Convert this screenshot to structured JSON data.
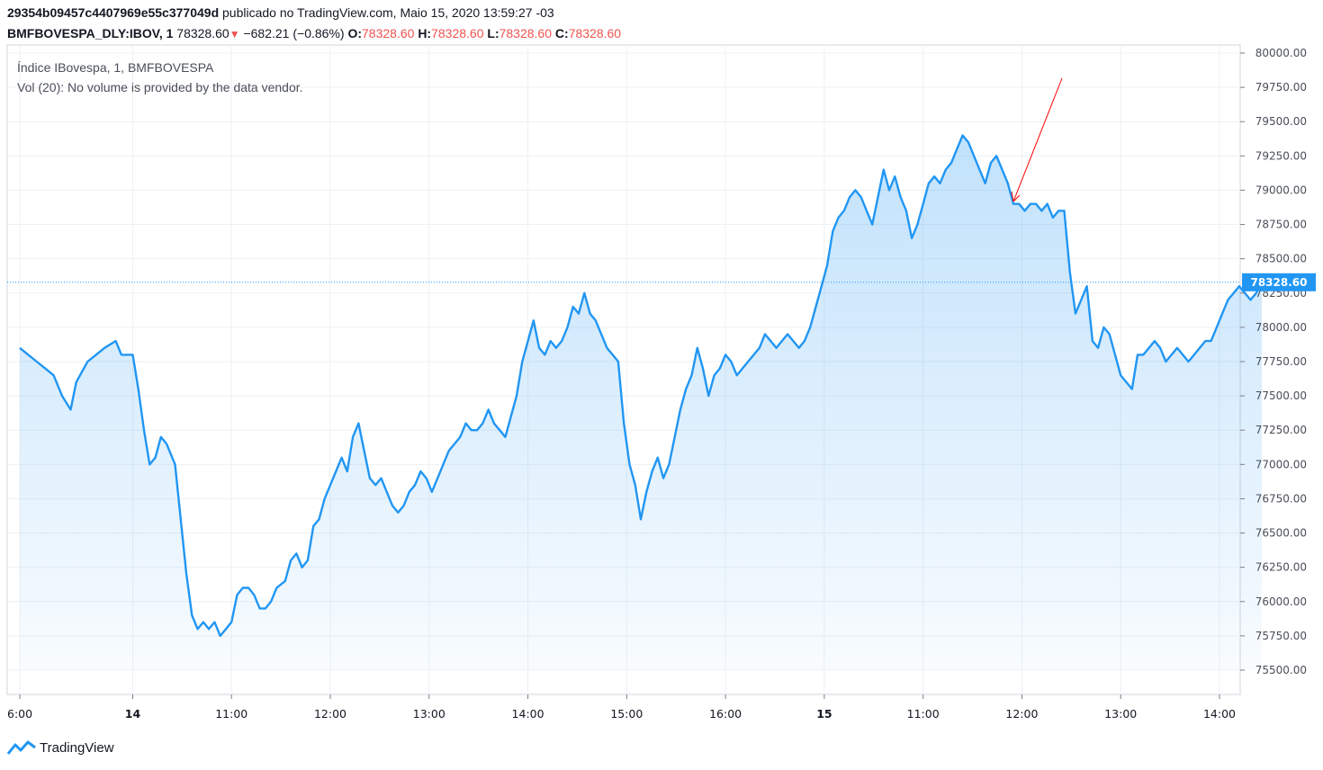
{
  "header": {
    "chart_id": "29354b09457c4407969e55c377049d",
    "published_text": "publicado no TradingView.com, Maio 15, 2020 13:59:27 -03",
    "symbol": "BMFBOVESPA_DLY:IBOV, 1",
    "last": "78328.60",
    "change": "−682.21 (−0.86%)",
    "open_label": "O:",
    "open": "78328.60",
    "high_label": "H:",
    "high": "78328.60",
    "low_label": "L:",
    "low": "78328.60",
    "close_label": "C:",
    "close": "78328.60"
  },
  "legend": {
    "title": "Índice IBovespa, 1, BMFBOVESPA",
    "volume_note": "Vol (20): No volume is provided by the data vendor."
  },
  "price_label": "78328.60",
  "colors": {
    "line": "#2196f3",
    "fill": "#2196f3",
    "down": "#ef5350",
    "annotation": "#ff0000",
    "price_label_bg": "#2196f3"
  },
  "logo_text": "TradingView",
  "chart_data": {
    "type": "area",
    "ylim": [
      75400,
      80050
    ],
    "y_ticks": [
      "80000.00",
      "79750.00",
      "79500.00",
      "79250.00",
      "79000.00",
      "78750.00",
      "78500.00",
      "78250.00",
      "78000.00",
      "77750.00",
      "77500.00",
      "77250.00",
      "77000.00",
      "76750.00",
      "76500.00",
      "76250.00",
      "76000.00",
      "75750.00",
      "75500.00"
    ],
    "x_ticks": [
      {
        "label": "6:00",
        "bold": false
      },
      {
        "label": "14",
        "bold": true
      },
      {
        "label": "11:00",
        "bold": false
      },
      {
        "label": "12:00",
        "bold": false
      },
      {
        "label": "13:00",
        "bold": false
      },
      {
        "label": "14:00",
        "bold": false
      },
      {
        "label": "15:00",
        "bold": false
      },
      {
        "label": "16:00",
        "bold": false
      },
      {
        "label": "15",
        "bold": true
      },
      {
        "label": "11:00",
        "bold": false
      },
      {
        "label": "12:00",
        "bold": false
      },
      {
        "label": "13:00",
        "bold": false
      },
      {
        "label": "14:00",
        "bold": false
      }
    ],
    "x_axis": "bar index (1-minute bars, 0-440)",
    "tick_bars": [
      0,
      40,
      75,
      110,
      145,
      180,
      215,
      250,
      285,
      320,
      355,
      390,
      425
    ],
    "series": [
      {
        "values": [
          [
            0,
            77850
          ],
          [
            3,
            77800
          ],
          [
            6,
            77750
          ],
          [
            9,
            77700
          ],
          [
            12,
            77650
          ],
          [
            15,
            77500
          ],
          [
            18,
            77400
          ],
          [
            20,
            77600
          ],
          [
            24,
            77750
          ],
          [
            27,
            77800
          ],
          [
            30,
            77850
          ],
          [
            34,
            77900
          ],
          [
            36,
            77800
          ],
          [
            40,
            77800
          ],
          [
            42,
            77550
          ],
          [
            44,
            77250
          ],
          [
            46,
            77000
          ],
          [
            48,
            77050
          ],
          [
            50,
            77200
          ],
          [
            52,
            77150
          ],
          [
            55,
            77000
          ],
          [
            57,
            76600
          ],
          [
            59,
            76200
          ],
          [
            61,
            75900
          ],
          [
            63,
            75800
          ],
          [
            65,
            75850
          ],
          [
            67,
            75800
          ],
          [
            69,
            75850
          ],
          [
            71,
            75750
          ],
          [
            73,
            75800
          ],
          [
            75,
            75850
          ],
          [
            77,
            76050
          ],
          [
            79,
            76100
          ],
          [
            81,
            76100
          ],
          [
            83,
            76050
          ],
          [
            85,
            75950
          ],
          [
            87,
            75950
          ],
          [
            89,
            76000
          ],
          [
            91,
            76100
          ],
          [
            94,
            76150
          ],
          [
            96,
            76300
          ],
          [
            98,
            76350
          ],
          [
            100,
            76250
          ],
          [
            102,
            76300
          ],
          [
            104,
            76550
          ],
          [
            106,
            76600
          ],
          [
            108,
            76750
          ],
          [
            110,
            76850
          ],
          [
            112,
            76950
          ],
          [
            114,
            77050
          ],
          [
            116,
            76950
          ],
          [
            118,
            77200
          ],
          [
            120,
            77300
          ],
          [
            122,
            77100
          ],
          [
            124,
            76900
          ],
          [
            126,
            76850
          ],
          [
            128,
            76900
          ],
          [
            130,
            76800
          ],
          [
            132,
            76700
          ],
          [
            134,
            76650
          ],
          [
            136,
            76700
          ],
          [
            138,
            76800
          ],
          [
            140,
            76850
          ],
          [
            142,
            76950
          ],
          [
            144,
            76900
          ],
          [
            146,
            76800
          ],
          [
            148,
            76900
          ],
          [
            150,
            77000
          ],
          [
            152,
            77100
          ],
          [
            154,
            77150
          ],
          [
            156,
            77200
          ],
          [
            158,
            77300
          ],
          [
            160,
            77250
          ],
          [
            162,
            77250
          ],
          [
            164,
            77300
          ],
          [
            166,
            77400
          ],
          [
            168,
            77300
          ],
          [
            170,
            77250
          ],
          [
            172,
            77200
          ],
          [
            174,
            77350
          ],
          [
            176,
            77500
          ],
          [
            178,
            77750
          ],
          [
            180,
            77900
          ],
          [
            182,
            78050
          ],
          [
            184,
            77850
          ],
          [
            186,
            77800
          ],
          [
            188,
            77900
          ],
          [
            190,
            77850
          ],
          [
            192,
            77900
          ],
          [
            194,
            78000
          ],
          [
            196,
            78150
          ],
          [
            198,
            78100
          ],
          [
            200,
            78250
          ],
          [
            202,
            78100
          ],
          [
            204,
            78050
          ],
          [
            206,
            77950
          ],
          [
            208,
            77850
          ],
          [
            210,
            77800
          ],
          [
            212,
            77750
          ],
          [
            214,
            77300
          ],
          [
            216,
            77000
          ],
          [
            218,
            76850
          ],
          [
            220,
            76600
          ],
          [
            222,
            76800
          ],
          [
            224,
            76950
          ],
          [
            226,
            77050
          ],
          [
            228,
            76900
          ],
          [
            230,
            77000
          ],
          [
            232,
            77200
          ],
          [
            234,
            77400
          ],
          [
            236,
            77550
          ],
          [
            238,
            77650
          ],
          [
            240,
            77850
          ],
          [
            242,
            77700
          ],
          [
            244,
            77500
          ],
          [
            246,
            77650
          ],
          [
            248,
            77700
          ],
          [
            250,
            77800
          ],
          [
            252,
            77750
          ],
          [
            254,
            77650
          ],
          [
            256,
            77700
          ],
          [
            258,
            77750
          ],
          [
            260,
            77800
          ],
          [
            262,
            77850
          ],
          [
            264,
            77950
          ],
          [
            266,
            77900
          ],
          [
            268,
            77850
          ],
          [
            270,
            77900
          ],
          [
            272,
            77950
          ],
          [
            274,
            77900
          ],
          [
            276,
            77850
          ],
          [
            278,
            77900
          ],
          [
            280,
            78000
          ],
          [
            282,
            78150
          ],
          [
            284,
            78300
          ],
          [
            286,
            78450
          ],
          [
            288,
            78700
          ],
          [
            290,
            78800
          ],
          [
            292,
            78850
          ],
          [
            294,
            78950
          ],
          [
            296,
            79000
          ],
          [
            298,
            78950
          ],
          [
            300,
            78850
          ],
          [
            302,
            78750
          ],
          [
            304,
            78950
          ],
          [
            306,
            79150
          ],
          [
            308,
            79000
          ],
          [
            310,
            79100
          ],
          [
            312,
            78950
          ],
          [
            314,
            78850
          ],
          [
            316,
            78650
          ],
          [
            318,
            78750
          ],
          [
            320,
            78900
          ],
          [
            322,
            79050
          ],
          [
            324,
            79100
          ],
          [
            326,
            79050
          ],
          [
            328,
            79150
          ],
          [
            330,
            79200
          ],
          [
            332,
            79300
          ],
          [
            334,
            79400
          ],
          [
            336,
            79350
          ],
          [
            338,
            79250
          ],
          [
            340,
            79150
          ],
          [
            342,
            79050
          ],
          [
            344,
            79200
          ],
          [
            346,
            79250
          ],
          [
            348,
            79150
          ],
          [
            350,
            79050
          ],
          [
            352,
            78900
          ],
          [
            354,
            78900
          ],
          [
            356,
            78850
          ],
          [
            358,
            78900
          ],
          [
            360,
            78900
          ],
          [
            362,
            78850
          ],
          [
            364,
            78900
          ],
          [
            366,
            78800
          ],
          [
            368,
            78850
          ],
          [
            370,
            78850
          ],
          [
            372,
            78400
          ],
          [
            374,
            78100
          ],
          [
            376,
            78200
          ],
          [
            378,
            78300
          ],
          [
            380,
            77900
          ],
          [
            382,
            77850
          ],
          [
            384,
            78000
          ],
          [
            386,
            77950
          ],
          [
            388,
            77800
          ],
          [
            390,
            77650
          ],
          [
            392,
            77600
          ],
          [
            394,
            77550
          ],
          [
            396,
            77800
          ],
          [
            398,
            77800
          ],
          [
            400,
            77850
          ],
          [
            402,
            77900
          ],
          [
            404,
            77850
          ],
          [
            406,
            77750
          ],
          [
            408,
            77800
          ],
          [
            410,
            77850
          ],
          [
            412,
            77800
          ],
          [
            414,
            77750
          ],
          [
            416,
            77800
          ],
          [
            418,
            77850
          ],
          [
            420,
            77900
          ],
          [
            422,
            77900
          ],
          [
            424,
            78000
          ],
          [
            426,
            78100
          ],
          [
            428,
            78200
          ],
          [
            430,
            78250
          ],
          [
            432,
            78300
          ],
          [
            434,
            78250
          ],
          [
            436,
            78200
          ],
          [
            438,
            78250
          ],
          [
            440,
            78328.6
          ]
        ]
      }
    ],
    "current_value": 78328.6
  }
}
